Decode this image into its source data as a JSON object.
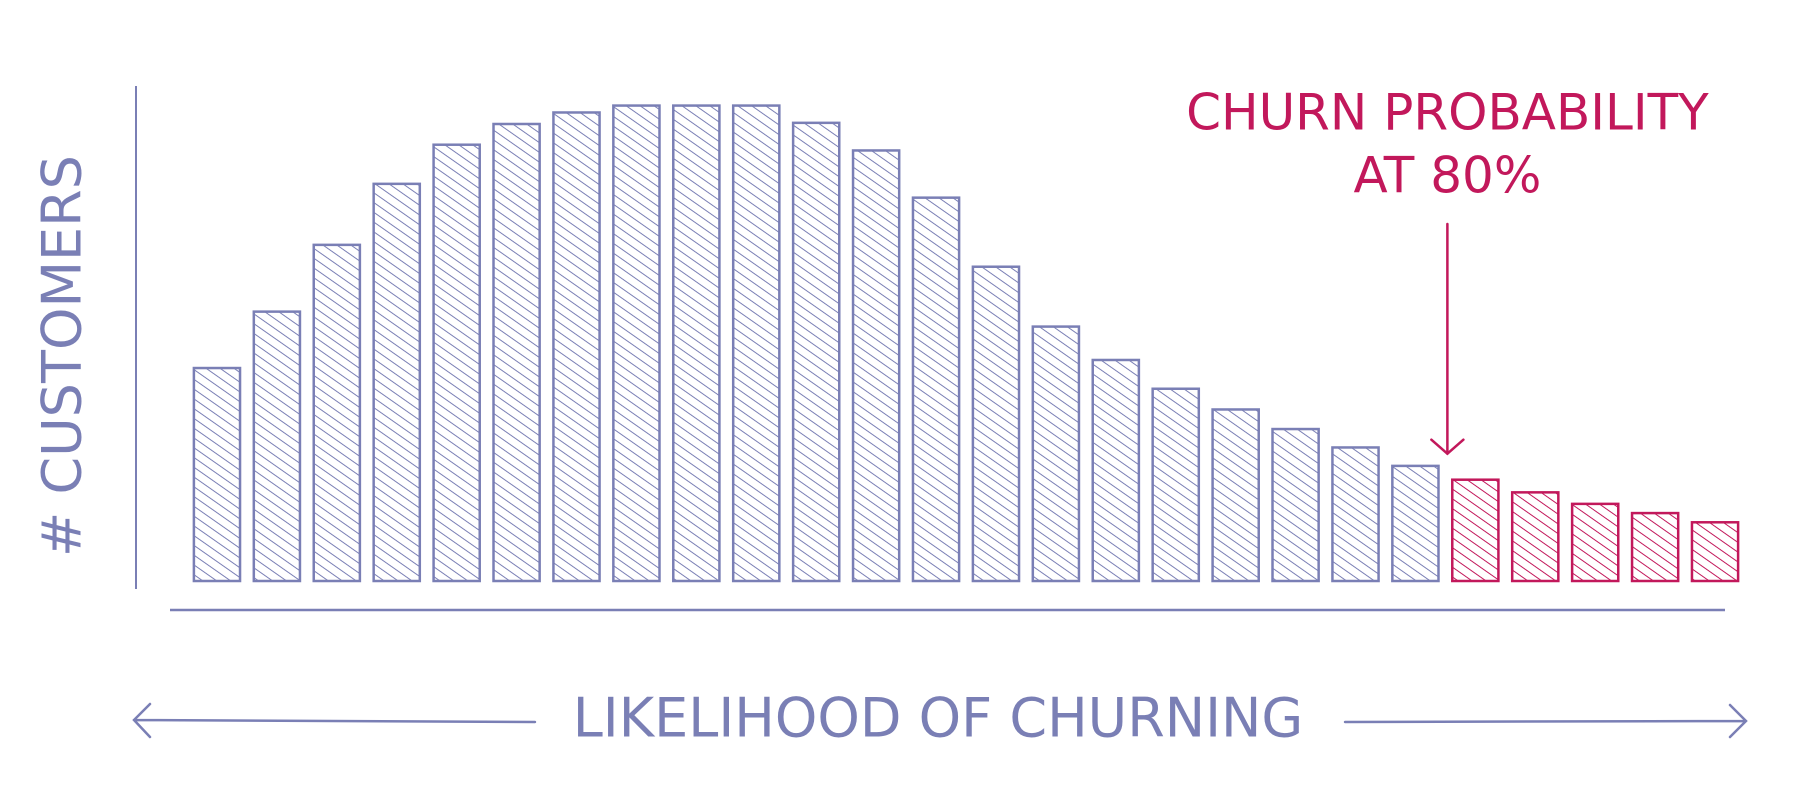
{
  "chart_data": {
    "type": "bar",
    "x_label": "LIKELIHOOD OF CHURNING",
    "y_label": "# CUSTOMERS",
    "categories": [
      null,
      null,
      null,
      null,
      null,
      null,
      null,
      null,
      null,
      null,
      null,
      null,
      null,
      null,
      null,
      null,
      null,
      null,
      null,
      null,
      null,
      null,
      null,
      null,
      null,
      null
    ],
    "values": [
      185,
      234,
      292,
      345,
      379,
      397,
      407,
      413,
      413,
      413,
      398,
      374,
      333,
      273,
      221,
      192,
      167,
      149,
      132,
      116,
      100,
      88,
      77,
      67,
      59,
      51
    ],
    "color": "#7a7fb5",
    "highlight_color": "#c2185b",
    "ylim": [
      0,
      430
    ],
    "annotation": {
      "lines": [
        "CHURN PROBABILITY",
        "AT 80%"
      ],
      "index": 21
    }
  }
}
